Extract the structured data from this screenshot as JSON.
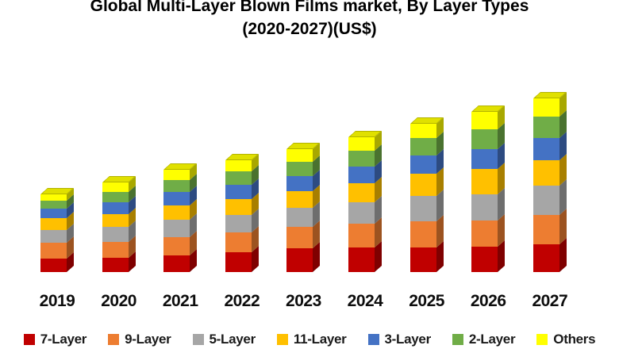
{
  "title": {
    "line1": "Global Multi-Layer Blown Films market, By Layer Types",
    "line2": "(2020-2027)(US$)"
  },
  "chart_data": {
    "type": "bar",
    "variant": "3d-stacked-column",
    "title": "Global Multi-Layer Blown Films market, By Layer Types (2020-2027)(US$)",
    "xlabel": "",
    "ylabel": "",
    "grid": false,
    "legend_position": "bottom",
    "categories": [
      "2019",
      "2020",
      "2021",
      "2022",
      "2023",
      "2024",
      "2025",
      "2026",
      "2027"
    ],
    "series": [
      {
        "name": "7-Layer",
        "color": "#C00000",
        "values": [
          17,
          18,
          21,
          25,
          30,
          31,
          31,
          32,
          35
        ]
      },
      {
        "name": "9-Layer",
        "color": "#ED7D31",
        "values": [
          20,
          20,
          23,
          25,
          27,
          30,
          33,
          33,
          37
        ]
      },
      {
        "name": "5-Layer",
        "color": "#A6A6A6",
        "values": [
          16,
          19,
          22,
          22,
          24,
          27,
          32,
          33,
          37
        ]
      },
      {
        "name": "11-Layer",
        "color": "#FFC000",
        "values": [
          15,
          16,
          18,
          20,
          21,
          24,
          28,
          32,
          32
        ]
      },
      {
        "name": "3-Layer",
        "color": "#4472C4",
        "values": [
          12,
          15,
          17,
          18,
          19,
          21,
          23,
          25,
          28
        ]
      },
      {
        "name": "2-Layer",
        "color": "#70AD47",
        "values": [
          10,
          13,
          15,
          17,
          18,
          20,
          22,
          25,
          27
        ]
      },
      {
        "name": "Others",
        "color": "#FFFF00",
        "values": [
          8,
          12,
          13,
          14,
          16,
          17,
          18,
          22,
          23
        ]
      }
    ],
    "stacked_totals": [
      98,
      113,
      129,
      141,
      155,
      170,
      187,
      202,
      219
    ]
  },
  "legend": {
    "items": [
      {
        "label": "7-Layer",
        "color": "#C00000"
      },
      {
        "label": "9-Layer",
        "color": "#ED7D31"
      },
      {
        "label": "5-Layer",
        "color": "#A6A6A6"
      },
      {
        "label": "11-Layer",
        "color": "#FFC000"
      },
      {
        "label": "3-Layer",
        "color": "#4472C4"
      },
      {
        "label": "2-Layer",
        "color": "#70AD47"
      },
      {
        "label": "Others",
        "color": "#FFFF00"
      }
    ]
  }
}
